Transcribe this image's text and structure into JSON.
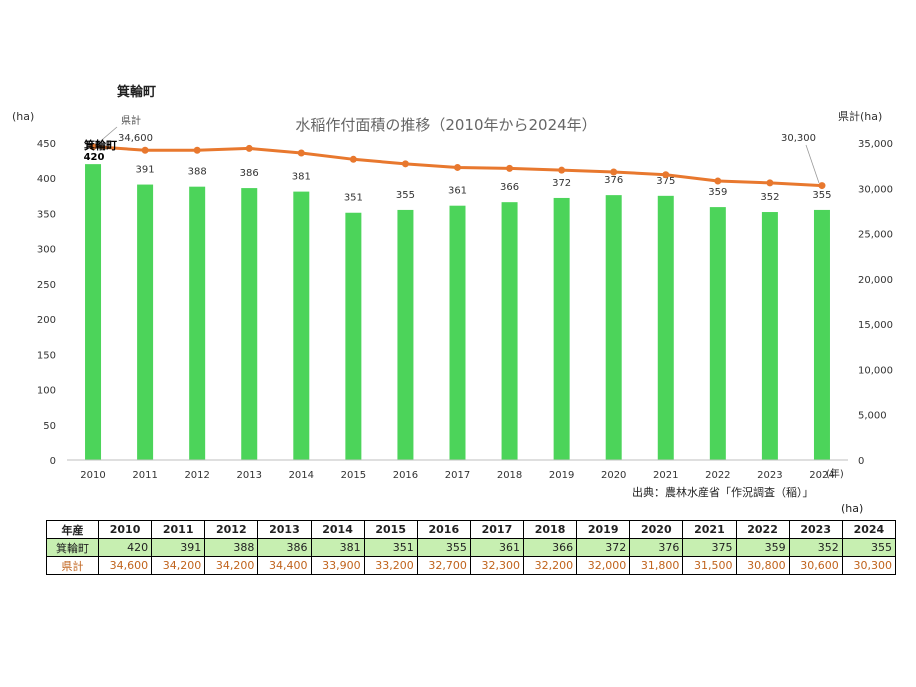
{
  "header": {
    "town_name": "箕輪町"
  },
  "chart_data": {
    "type": "bar+line",
    "title": "水稲作付面積の推移（2010年から2024年）",
    "categories": [
      "2010",
      "2011",
      "2012",
      "2013",
      "2014",
      "2015",
      "2016",
      "2017",
      "2018",
      "2019",
      "2020",
      "2021",
      "2022",
      "2023",
      "2024"
    ],
    "x_unit": "(年)",
    "y_left": {
      "unit": "(ha)",
      "ylim": [
        0,
        450
      ],
      "ticks": [
        0,
        50,
        100,
        150,
        200,
        250,
        300,
        350,
        400,
        450
      ]
    },
    "y_right": {
      "unit": "県計(ha)",
      "ylim": [
        0,
        35000
      ],
      "ticks": [
        "0",
        "5,000",
        "10,000",
        "15,000",
        "20,000",
        "25,000",
        "30,000",
        "35,000"
      ]
    },
    "series": [
      {
        "name": "箕輪町",
        "type": "bar",
        "axis": "left",
        "color": "#4cd45a",
        "values": [
          420,
          391,
          388,
          386,
          381,
          351,
          355,
          361,
          366,
          372,
          376,
          375,
          359,
          352,
          355
        ]
      },
      {
        "name": "県計",
        "type": "line",
        "axis": "right",
        "color": "#e8782e",
        "values": [
          34600,
          34200,
          34200,
          34400,
          33900,
          33200,
          32700,
          32300,
          32200,
          32000,
          31800,
          31500,
          30800,
          30600,
          30300
        ]
      }
    ],
    "annotations": {
      "bar_series_label": "箕輪町",
      "line_series_label": "県計",
      "line_first_label": "34,600",
      "line_last_label": "30,300"
    },
    "grid": false
  },
  "source_note": "出典：農林水産省「作況調査（稲）」",
  "table": {
    "unit": "(ha)",
    "header_label": "年産",
    "years": [
      "2010",
      "2011",
      "2012",
      "2013",
      "2014",
      "2015",
      "2016",
      "2017",
      "2018",
      "2019",
      "2020",
      "2021",
      "2022",
      "2023",
      "2024"
    ],
    "rows": [
      {
        "label": "箕輪町",
        "values": [
          "420",
          "391",
          "388",
          "386",
          "381",
          "351",
          "355",
          "361",
          "366",
          "372",
          "376",
          "375",
          "359",
          "352",
          "355"
        ]
      },
      {
        "label": "県計",
        "values": [
          "34,600",
          "34,200",
          "34,200",
          "34,400",
          "33,900",
          "33,200",
          "32,700",
          "32,300",
          "32,200",
          "32,000",
          "31,800",
          "31,500",
          "30,800",
          "30,600",
          "30,300"
        ]
      }
    ]
  }
}
